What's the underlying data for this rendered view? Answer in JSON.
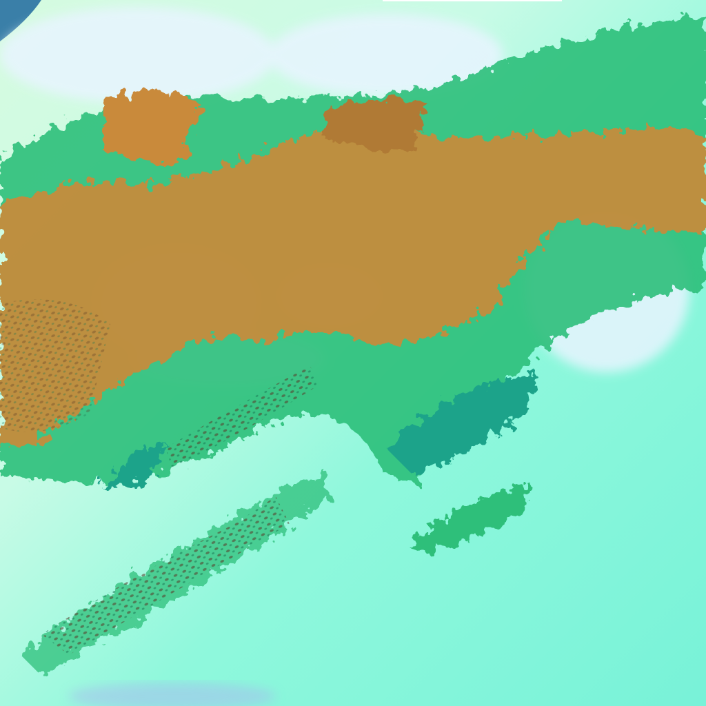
{
  "image": {
    "kind": "false-color satellite imagery of cloud bands",
    "colors": {
      "background_cyan": "#7ff5d8",
      "haze_light": "#d9fbe8",
      "cloud_white_violet": "#e6f0ff",
      "green_cloud": "#2fbf7a",
      "teal_cloud": "#1aa38a",
      "orange_cloud": "#c98a3a",
      "brown_shadow": "#8a5a2a",
      "ocean_blue": "#3a7fa8"
    }
  }
}
